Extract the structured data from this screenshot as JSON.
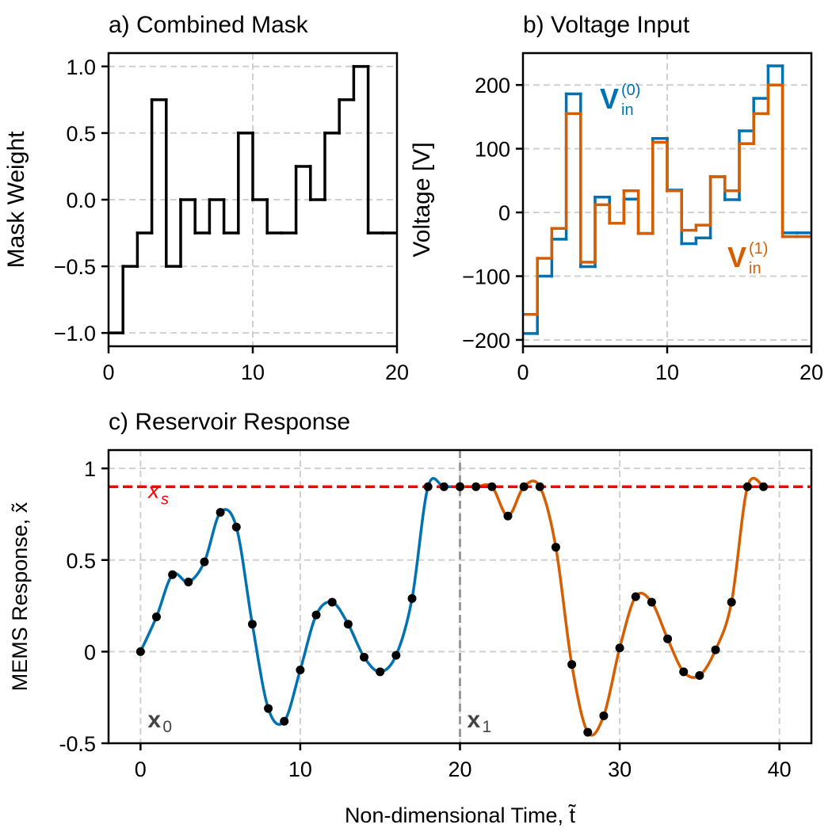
{
  "chart_data": [
    {
      "type": "step",
      "title": "a) Combined Mask",
      "y_label": "Mask Weight",
      "color": "#000000",
      "grid": true,
      "x": [
        0,
        1,
        2,
        3,
        4,
        5,
        6,
        7,
        8,
        9,
        10,
        11,
        12,
        13,
        14,
        15,
        16,
        17,
        18,
        19
      ],
      "values": [
        -1.0,
        -0.5,
        -0.25,
        0.75,
        -0.5,
        0,
        -0.25,
        0,
        -0.25,
        0.5,
        0,
        -0.25,
        -0.25,
        0.25,
        0,
        0.5,
        0.75,
        1.0,
        -0.25,
        -0.25
      ],
      "xlim": [
        0,
        20
      ],
      "xticks": [
        0,
        10,
        20
      ],
      "ylim": [
        -1.1,
        1.1
      ],
      "yticks": [
        {
          "value": -1.0,
          "label": "−1.0"
        },
        {
          "value": -0.5,
          "label": "−0.5"
        },
        {
          "value": 0,
          "label": "0.0"
        },
        {
          "value": 0.5,
          "label": "0.5"
        },
        {
          "value": 1.0,
          "label": "1.0"
        }
      ]
    },
    {
      "type": "step",
      "title": "b) Voltage Input",
      "y_label": "Voltage [V]",
      "grid": true,
      "x": [
        0,
        1,
        2,
        3,
        4,
        5,
        6,
        7,
        8,
        9,
        10,
        11,
        12,
        13,
        14,
        15,
        16,
        17,
        18,
        19
      ],
      "series": [
        {
          "name": "V",
          "name_sub": "in",
          "name_sup": "(0)",
          "color": "#0072b2",
          "values": [
            -190,
            -100,
            -42,
            186,
            -85,
            24,
            -17,
            21,
            -33,
            116,
            35,
            -49,
            -40,
            56,
            20,
            128,
            179,
            230,
            -32,
            -32
          ]
        },
        {
          "name": "V",
          "name_sub": "in",
          "name_sup": "(1)",
          "color": "#d55e00",
          "values": [
            -160,
            -72,
            -25,
            155,
            -78,
            12,
            -17,
            34,
            -33,
            110,
            34,
            -28,
            -20,
            56,
            34,
            108,
            155,
            200,
            -38,
            -38
          ]
        }
      ],
      "xlim": [
        0,
        20
      ],
      "xticks": [
        0,
        10,
        20
      ],
      "ylim": [
        -210,
        250
      ],
      "yticks": [
        {
          "value": -200,
          "label": "−200"
        },
        {
          "value": -100,
          "label": "−100"
        },
        0,
        100,
        200
      ]
    },
    {
      "type": "line",
      "title": "c) Reservoir Response",
      "y_label": "MEMS Response, x̃",
      "x_label": "Non-dimensional Time, t̃",
      "grid": true,
      "marker_color": "#000000",
      "series": [
        {
          "color": "#0072b2",
          "x": [
            0,
            1,
            2,
            3,
            4,
            5,
            6,
            7,
            8,
            9,
            10,
            11,
            12,
            13,
            14,
            15,
            16,
            17,
            18,
            19,
            20
          ],
          "values": [
            0,
            0.19,
            0.42,
            0.38,
            0.49,
            0.76,
            0.68,
            0.15,
            -0.31,
            -0.38,
            -0.1,
            0.2,
            0.27,
            0.15,
            -0.03,
            -0.11,
            -0.02,
            0.29,
            0.9,
            0.9,
            0.9
          ]
        },
        {
          "color": "#d55e00",
          "x": [
            20,
            21,
            22,
            23,
            24,
            25,
            26,
            27,
            28,
            29,
            30,
            31,
            32,
            33,
            34,
            35,
            36,
            37,
            38,
            39
          ],
          "values": [
            0.9,
            0.9,
            0.9,
            0.74,
            0.9,
            0.9,
            0.57,
            -0.07,
            -0.44,
            -0.35,
            0.02,
            0.3,
            0.27,
            0.07,
            -0.11,
            -0.13,
            0.01,
            0.27,
            0.9,
            0.9
          ]
        }
      ],
      "hline": {
        "value": 0.9,
        "color": "#ff0000",
        "text": "x",
        "sub": "s"
      },
      "vline": {
        "value": 20,
        "color": "#999999"
      },
      "region_labels": [
        {
          "text": "x",
          "sub": "0"
        },
        {
          "text": "x",
          "sub": "1"
        }
      ],
      "xlim": [
        -2,
        42
      ],
      "xticks": [
        0,
        10,
        20,
        30,
        40
      ],
      "ylim": [
        -0.5,
        1.1
      ],
      "yticks": [
        -0.5,
        0,
        0.5,
        1
      ]
    }
  ]
}
